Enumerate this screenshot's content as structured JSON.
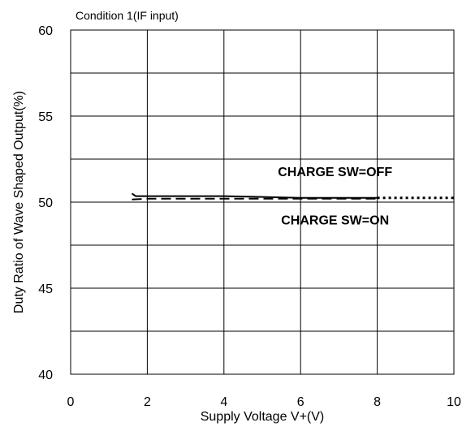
{
  "chart_data": {
    "type": "line",
    "title": "Condition 1(IF input)",
    "xlabel": "Supply Voltage V+(V)",
    "ylabel": "Duty Ratio of Wave Shaped Output(%)",
    "xlim": [
      0,
      10
    ],
    "ylim": [
      40,
      60
    ],
    "x_ticks": [
      0,
      2,
      4,
      6,
      8,
      10
    ],
    "y_ticks": [
      40,
      45,
      50,
      55,
      60
    ],
    "grid": true,
    "legend": "none",
    "series": [
      {
        "name": "CHARGE SW=OFF",
        "line_style": "solid",
        "color": "#000000",
        "x": [
          1.6,
          1.7,
          2,
          3,
          4,
          5,
          6,
          7,
          8
        ],
        "y": [
          50.5,
          50.35,
          50.35,
          50.35,
          50.35,
          50.3,
          50.25,
          50.25,
          50.25
        ]
      },
      {
        "name": "CHARGE SW=ON",
        "line_style": "dashed",
        "color": "#000000",
        "x": [
          1.6,
          2,
          3,
          4,
          5,
          6,
          7,
          8
        ],
        "y": [
          50.15,
          50.2,
          50.2,
          50.2,
          50.2,
          50.2,
          50.2,
          50.2
        ]
      },
      {
        "name": "",
        "line_style": "dotted",
        "color": "#000000",
        "x": [
          8,
          9,
          10
        ],
        "y": [
          50.25,
          50.25,
          50.25
        ]
      }
    ],
    "annotations": [
      {
        "id": "off",
        "text": "CHARGE SW=OFF",
        "x": 6.9,
        "y": 51.5
      },
      {
        "id": "on",
        "text": "CHARGE SW=ON",
        "x": 6.9,
        "y": 48.7
      }
    ]
  }
}
